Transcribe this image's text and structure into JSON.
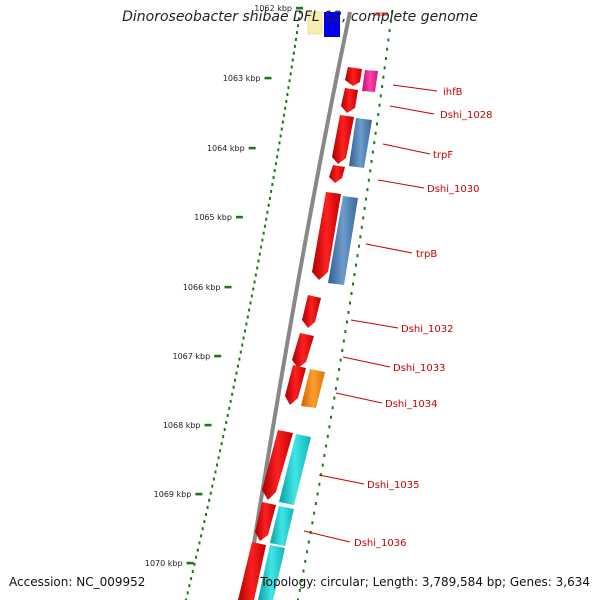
{
  "title": "Dinoroseobacter shibae DFL 12, complete genome",
  "accession": "Accession: NC_009952",
  "summary": "Topology: circular; Length: 3,789,584 bp; Genes: 3,634",
  "ticks": [
    "1062 kbp",
    "1063 kbp",
    "1064 kbp",
    "1065 kbp",
    "1066 kbp",
    "1067 kbp",
    "1068 kbp",
    "1069 kbp",
    "1070 kbp"
  ],
  "genes": [
    {
      "label": "ihfB",
      "cds_color": "#ff1493"
    },
    {
      "label": "Dshi_1028",
      "cds_color": ""
    },
    {
      "label": "trpF",
      "cds_color": "#4682b4"
    },
    {
      "label": "Dshi_1030",
      "cds_color": ""
    },
    {
      "label": "trpB",
      "cds_color": "#4682b4"
    },
    {
      "label": "Dshi_1032",
      "cds_color": ""
    },
    {
      "label": "Dshi_1033",
      "cds_color": ""
    },
    {
      "label": "Dshi_1034",
      "cds_color": "#ff8c00"
    },
    {
      "label": "Dshi_1035",
      "cds_color": "#20c8c8"
    },
    {
      "label": "Dshi_1036",
      "cds_color": "#20c8c8"
    }
  ],
  "colors": {
    "gene_arrow": "#ff0000",
    "backbone": "#888888",
    "tick_marks": "#1a7a1a",
    "label_text": "#cc0000"
  }
}
